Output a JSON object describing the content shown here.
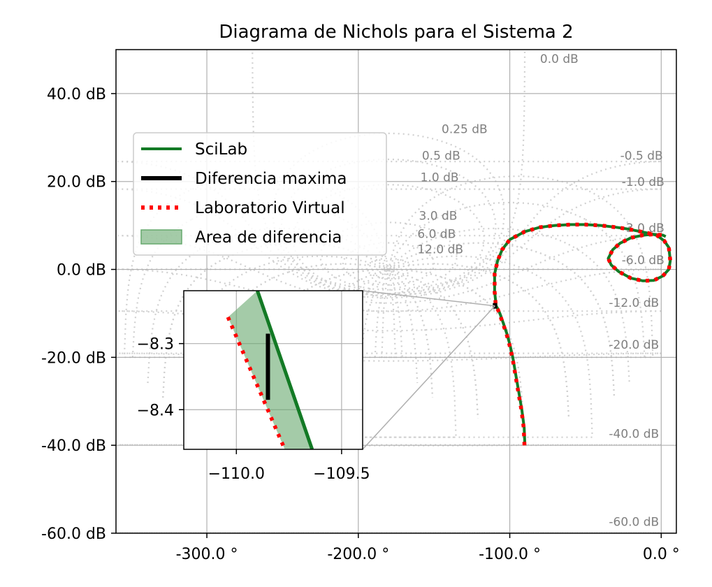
{
  "chart_data": {
    "type": "line",
    "title": "Diagrama de Nichols para el Sistema 2",
    "xlabel": "",
    "ylabel": "",
    "xlim": [
      -360,
      10
    ],
    "ylim": [
      -60,
      50
    ],
    "x_ticks": [
      {
        "v": -300,
        "label": "-300.0 °"
      },
      {
        "v": -200,
        "label": "-200.0 °"
      },
      {
        "v": -100,
        "label": "-100.0 °"
      },
      {
        "v": 0,
        "label": "0.0 °"
      }
    ],
    "y_ticks": [
      {
        "v": 40,
        "label": "40.0 dB"
      },
      {
        "v": 20,
        "label": "20.0 dB"
      },
      {
        "v": 0,
        "label": "0.0 dB"
      },
      {
        "v": -20,
        "label": "-20.0 dB"
      },
      {
        "v": -40,
        "label": "-40.0 dB"
      },
      {
        "v": -60,
        "label": "-60.0 dB"
      }
    ],
    "grid": true,
    "nichols_grid": {
      "closed_loop_magnitudes": [
        {
          "db": 0,
          "label": "0.0 dB"
        },
        {
          "db": 0.25,
          "label": "0.25 dB"
        },
        {
          "db": 0.5,
          "label": "0.5 dB"
        },
        {
          "db": 1,
          "label": "1.0 dB"
        },
        {
          "db": 3,
          "label": "3.0 dB"
        },
        {
          "db": 6,
          "label": "6.0 dB"
        },
        {
          "db": 12,
          "label": "12.0 dB"
        },
        {
          "db": -0.5,
          "label": "-0.5 dB"
        },
        {
          "db": -1,
          "label": "-1.0 dB"
        },
        {
          "db": -3,
          "label": "-3.0 dB"
        },
        {
          "db": -6,
          "label": "-6.0 dB"
        },
        {
          "db": -12,
          "label": "-12.0 dB"
        },
        {
          "db": -20,
          "label": "-20.0 dB"
        },
        {
          "db": -40,
          "label": "-40.0 dB"
        },
        {
          "db": -60,
          "label": "-60.0 dB"
        }
      ],
      "closed_loop_phases": [
        -5,
        -10,
        -20,
        -30,
        -45,
        -60,
        -90,
        -120,
        -150,
        -180,
        -210,
        -240,
        -270,
        -300,
        -315,
        -330,
        -340,
        -350,
        -355
      ]
    },
    "legend_position": "upper-left",
    "series": [
      {
        "name": "SciLab",
        "color": "#137a25",
        "style": "solid",
        "x": [
          -90,
          -90.5,
          -92,
          -94,
          -96,
          -98,
          -100,
          -102,
          -104,
          -106,
          -107.5,
          -109,
          -110,
          -110,
          -108,
          -105,
          -100,
          -90,
          -80,
          -70,
          -60,
          -50,
          -40,
          -30,
          -22,
          -15,
          -8,
          -3,
          2,
          5,
          6,
          5,
          1,
          -5,
          -12,
          -20,
          -28,
          -33,
          -35,
          -32,
          -27,
          -20,
          -12,
          -5,
          1,
          3
        ],
        "y": [
          -40,
          -36,
          -32,
          -28,
          -24,
          -20,
          -17,
          -14.5,
          -12.5,
          -10.5,
          -9.2,
          -8.3,
          -5,
          -1,
          2,
          4.5,
          6.8,
          8.6,
          9.6,
          10,
          10.2,
          10.2,
          10,
          9.6,
          9.2,
          8.7,
          8.2,
          7.8,
          6.5,
          5,
          2,
          0,
          -1.5,
          -2.5,
          -2.6,
          -2,
          -0.5,
          1,
          2.5,
          4.5,
          6,
          7.2,
          7.8,
          8,
          7.8,
          7.5
        ]
      },
      {
        "name": "Laboratorio Virtual",
        "color": "#ff0000",
        "style": "dotted",
        "x": [
          -90.3,
          -90.8,
          -92.3,
          -94.3,
          -96.3,
          -98.3,
          -100.3,
          -102.3,
          -104.3,
          -106.3,
          -107.8,
          -109.2,
          -110,
          -110,
          -108,
          -105,
          -100,
          -90,
          -80,
          -70,
          -60,
          -50,
          -40,
          -30,
          -22,
          -15,
          -8,
          -3,
          2,
          5,
          6,
          5,
          1,
          -5,
          -12,
          -20,
          -28,
          -33,
          -35,
          -32,
          -27,
          -20,
          -12,
          -5,
          1,
          3
        ],
        "y": [
          -40,
          -36,
          -32,
          -28,
          -24,
          -20,
          -17,
          -14.5,
          -12.5,
          -10.5,
          -9.2,
          -8.3,
          -5,
          -1,
          2,
          4.5,
          6.8,
          8.6,
          9.6,
          10,
          10.2,
          10.2,
          10,
          9.6,
          9.2,
          8.7,
          8.2,
          7.8,
          6.5,
          5,
          2,
          0,
          -1.5,
          -2.5,
          -2.6,
          -2,
          -0.5,
          1,
          2.5,
          4.5,
          6,
          7.2,
          7.8,
          8,
          7.8,
          7.5
        ]
      }
    ],
    "max_difference": {
      "name": "Diferencia maxima",
      "x": -109.8,
      "y1": -8.285,
      "y2": -8.385,
      "color": "#000000"
    },
    "difference_area": {
      "name": "Area de diferencia",
      "color": "#67a96e"
    },
    "inset": {
      "xlim": [
        -110.25,
        -109.4
      ],
      "ylim": [
        -8.46,
        -8.22
      ],
      "x_ticks": [
        {
          "v": -110,
          "label": "−110.0"
        },
        {
          "v": -109.5,
          "label": "−109.5"
        }
      ],
      "y_ticks": [
        {
          "v": -8.3,
          "label": "−8.3"
        },
        {
          "v": -8.4,
          "label": "−8.4"
        }
      ],
      "green_line": {
        "x": [
          -109.9,
          -109.64
        ],
        "y": [
          -8.22,
          -8.46
        ]
      },
      "red_line": {
        "x": [
          -110.04,
          -109.77
        ],
        "y": [
          -8.26,
          -8.46
        ]
      },
      "max_diff": {
        "x": -109.85,
        "y1": -8.285,
        "y2": -8.385
      }
    }
  }
}
